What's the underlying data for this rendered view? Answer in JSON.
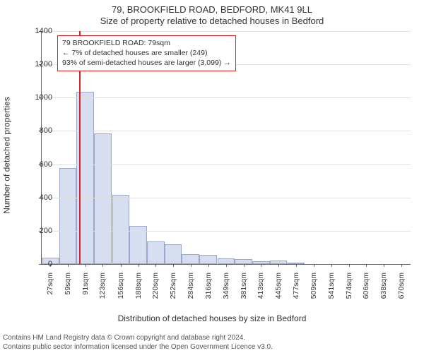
{
  "address_line": "79, BROOKFIELD ROAD, BEDFORD, MK41 9LL",
  "subtitle": "Size of property relative to detached houses in Bedford",
  "ylabel": "Number of detached properties",
  "xlabel": "Distribution of detached houses by size in Bedford",
  "footer_line1": "Contains HM Land Registry data © Crown copyright and database right 2024.",
  "footer_line2": "Contains public sector information licensed under the Open Government Licence v3.0.",
  "annotation": {
    "line1": "79 BROOKFIELD ROAD: 79sqm",
    "line2": "← 7% of detached houses are smaller (249)",
    "line3": "93% of semi-detached houses are larger (3,099) →"
  },
  "chart": {
    "type": "histogram",
    "background_color": "#ffffff",
    "grid_color": "#e0e0e0",
    "axis_color": "#666666",
    "bar_fill": "#d6deef",
    "bar_border": "#9aa8c9",
    "marker_color": "#d62728",
    "marker_x": 79,
    "xlim": [
      11,
      687
    ],
    "ylim": [
      0,
      1400
    ],
    "ytick_step": 200,
    "tick_fontsize": 11,
    "label_fontsize": 12,
    "title_fontsize": 13,
    "annotation_fontsize": 10.5,
    "bins": [
      {
        "x": 11,
        "label": "27sqm",
        "count": 40
      },
      {
        "x": 43,
        "label": "59sqm",
        "count": 575
      },
      {
        "x": 75,
        "label": "91sqm",
        "count": 1035
      },
      {
        "x": 107,
        "label": "123sqm",
        "count": 785
      },
      {
        "x": 140,
        "label": "156sqm",
        "count": 415
      },
      {
        "x": 172,
        "label": "188sqm",
        "count": 230
      },
      {
        "x": 204,
        "label": "220sqm",
        "count": 135
      },
      {
        "x": 236,
        "label": "252sqm",
        "count": 120
      },
      {
        "x": 268,
        "label": "284sqm",
        "count": 60
      },
      {
        "x": 300,
        "label": "316sqm",
        "count": 55
      },
      {
        "x": 333,
        "label": "349sqm",
        "count": 35
      },
      {
        "x": 365,
        "label": "381sqm",
        "count": 30
      },
      {
        "x": 397,
        "label": "413sqm",
        "count": 15
      },
      {
        "x": 429,
        "label": "445sqm",
        "count": 22
      },
      {
        "x": 461,
        "label": "477sqm",
        "count": 10
      },
      {
        "x": 493,
        "label": "509sqm",
        "count": 0
      },
      {
        "x": 526,
        "label": "541sqm",
        "count": 0
      },
      {
        "x": 558,
        "label": "574sqm",
        "count": 0
      },
      {
        "x": 590,
        "label": "606sqm",
        "count": 0
      },
      {
        "x": 622,
        "label": "638sqm",
        "count": 0
      },
      {
        "x": 654,
        "label": "670sqm",
        "count": 0
      }
    ],
    "bin_width": 32
  }
}
